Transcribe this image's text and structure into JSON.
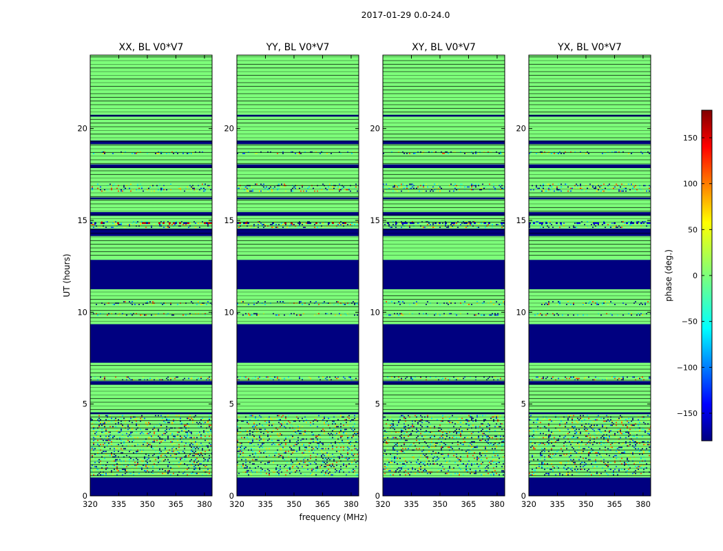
{
  "chart_data": {
    "type": "heatmap",
    "title": "2017-01-29 0.0-24.0",
    "xlabel": "frequency (MHz)",
    "ylabel": "UT (hours)",
    "xlim": [
      320,
      384
    ],
    "ylim": [
      0,
      24
    ],
    "xticks": [
      320,
      335,
      350,
      365,
      380
    ],
    "yticks": [
      0,
      5,
      10,
      15,
      20
    ],
    "colors": {
      "flagged": "#000080",
      "zero_phase": "#7dff7a",
      "row_line": "#000000",
      "noise": [
        "#00d4ff",
        "#33ffc4",
        "#c4ff33",
        "#ffd200",
        "#0044ff",
        "#ff3c00"
      ]
    },
    "panels": [
      {
        "title": "XX, BL V0*V7",
        "active_feature_near_15h": "red"
      },
      {
        "title": "YY, BL V0*V7",
        "active_feature_near_15h": "red"
      },
      {
        "title": "XY, BL V0*V7",
        "active_feature_near_15h": "blue"
      },
      {
        "title": "YX, BL V0*V7",
        "active_feature_near_15h": "blue"
      }
    ],
    "flagged_bands_hours": [
      [
        0.0,
        1.0
      ],
      [
        4.45,
        4.55
      ],
      [
        6.05,
        6.25
      ],
      [
        7.25,
        9.35
      ],
      [
        11.25,
        12.85
      ],
      [
        14.15,
        14.55
      ],
      [
        15.25,
        15.45
      ],
      [
        16.15,
        16.25
      ],
      [
        17.85,
        18.05
      ],
      [
        19.15,
        19.35
      ],
      [
        20.65,
        20.75
      ]
    ],
    "noisy_bands_hours": [
      [
        1.1,
        4.4
      ],
      [
        6.3,
        6.5
      ],
      [
        9.8,
        9.95
      ],
      [
        10.4,
        10.6
      ],
      [
        14.6,
        14.95
      ],
      [
        16.6,
        17.0
      ],
      [
        18.6,
        18.75
      ]
    ],
    "colorbar": {
      "label": "phase (deg.)",
      "min": -180,
      "max": 180,
      "ticks": [
        -150,
        -100,
        -50,
        0,
        50,
        100,
        150
      ],
      "tick_labels": [
        "−150",
        "−100",
        "−50",
        "0",
        "50",
        "100",
        "150"
      ],
      "colormap": "jet"
    }
  }
}
